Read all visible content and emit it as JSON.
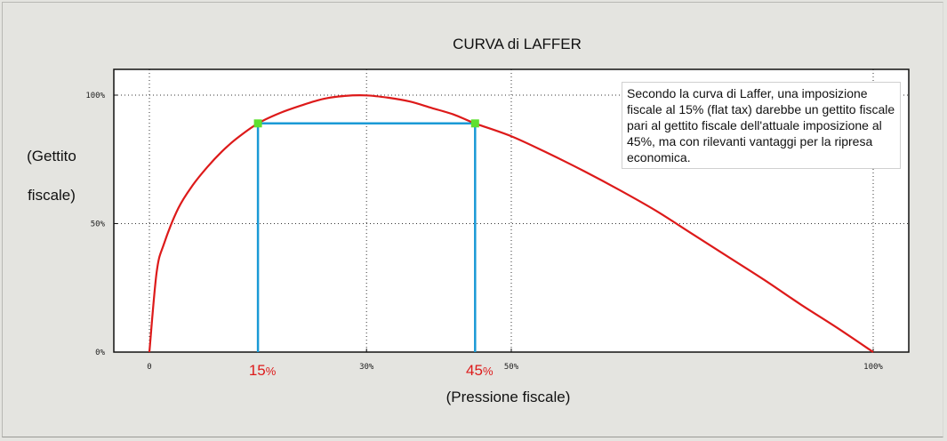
{
  "chart_data": {
    "type": "line",
    "title": "CURVA di LAFFER",
    "ylabel_lines": [
      "(Gettito",
      "fiscale)"
    ],
    "xlabel": "(Pressione fiscale)",
    "xlim": [
      0,
      100
    ],
    "ylim": [
      0,
      100
    ],
    "x_ticks": [
      {
        "value": 0,
        "label": "0"
      },
      {
        "value": 30,
        "label": "30%"
      },
      {
        "value": 50,
        "label": "50%"
      },
      {
        "value": 100,
        "label": "100%"
      }
    ],
    "y_ticks": [
      {
        "value": 0,
        "label": "0%"
      },
      {
        "value": 50,
        "label": "50%"
      },
      {
        "value": 100,
        "label": "100%"
      }
    ],
    "grid": true,
    "series": [
      {
        "color": "#dd1a1a",
        "x": [
          0,
          1,
          2,
          4,
          6,
          8,
          10,
          12,
          15,
          18,
          21,
          24,
          27,
          30,
          33,
          36,
          39,
          42,
          45,
          50,
          55,
          60,
          65,
          70,
          75,
          80,
          85,
          90,
          95,
          100
        ],
        "y": [
          0,
          31,
          42,
          56,
          65,
          72,
          78,
          83,
          89,
          93,
          96,
          98.5,
          99.7,
          99.9,
          99,
          97.5,
          95,
          92.5,
          89,
          84,
          77.5,
          70.5,
          63,
          55,
          46,
          37,
          28,
          18.5,
          9.5,
          0
        ]
      }
    ],
    "highlighted_points": [
      {
        "x": 15,
        "y": 89,
        "label_num": "15",
        "label_unit": "%"
      },
      {
        "x": 45,
        "y": 89,
        "label_num": "45",
        "label_unit": "%"
      }
    ],
    "guide_color": "#1a9ad6",
    "marker_color": "#5fe030",
    "annotation": "Secondo la curva di Laffer, una imposizione fiscale al 15% (flat tax) darebbe un gettito fiscale pari al gettito fiscale dell'attuale imposizione al 45%, ma con rilevanti vantaggi per la ripresa economica."
  }
}
